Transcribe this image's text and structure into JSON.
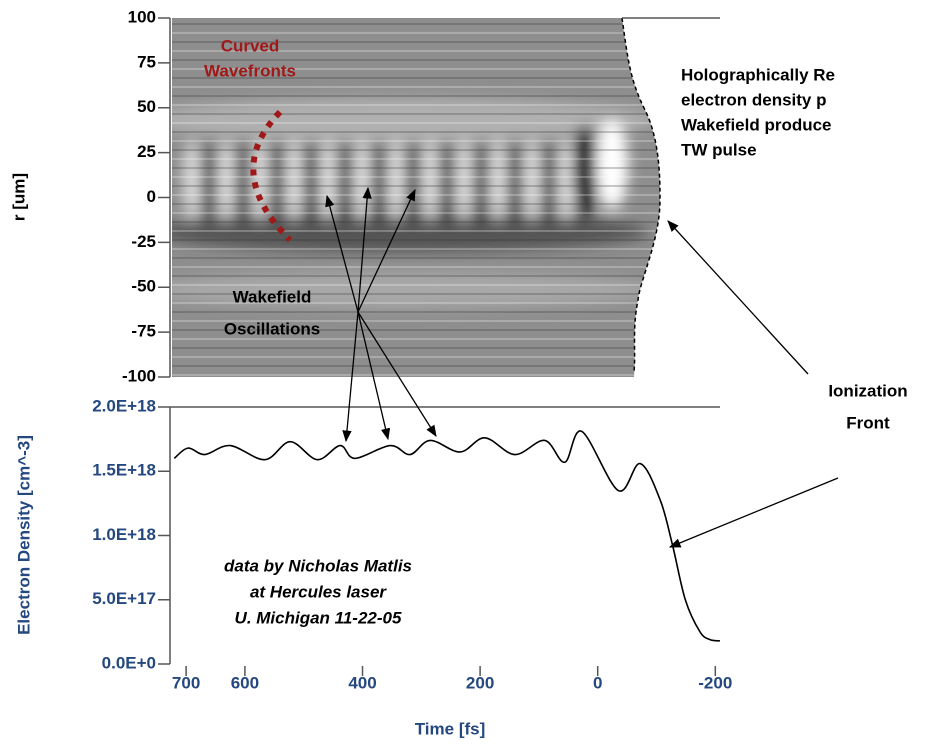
{
  "chart_data": [
    {
      "type": "image",
      "ylabel": "r [um]",
      "ylim": [
        -100,
        100
      ],
      "yticks": [
        100,
        75,
        50,
        25,
        0,
        -25,
        -50,
        -75,
        -100
      ],
      "annotations": [
        {
          "text": [
            "Curved",
            "Wavefronts"
          ],
          "color": "#a01818"
        },
        {
          "text": [
            "Holographically Re",
            "electron density p",
            "Wakefield produce",
            "TW pulse"
          ],
          "color": "#000000"
        },
        {
          "text": [
            "Wakefield",
            "Oscillations"
          ],
          "color": "#000000"
        },
        {
          "text": [
            "Ionization",
            "Front"
          ],
          "color": "#000000"
        }
      ]
    },
    {
      "type": "line",
      "xlabel": "Time [fs]",
      "ylabel": "Electron Density [cm^-3]",
      "xlim": [
        724,
        -208
      ],
      "xticks": [
        700,
        600,
        400,
        200,
        0,
        -200
      ],
      "ylim": [
        0,
        2e+18
      ],
      "yticks": [
        {
          "value": 2e+18,
          "label": "2.0E+18"
        },
        {
          "value": 1.5e+18,
          "label": "1.5E+18"
        },
        {
          "value": 1e+18,
          "label": "1.0E+18"
        },
        {
          "value": 5e+17,
          "label": "5.0E+17"
        },
        {
          "value": 0,
          "label": "0.0E+0"
        }
      ],
      "axis_color": "#24487f",
      "x": [
        720,
        697,
        668,
        625,
        566,
        523,
        477,
        438,
        413,
        353,
        319,
        285,
        234,
        192,
        141,
        90,
        56,
        27,
        -35,
        -72,
        -106,
        -127,
        -149,
        -174,
        -191,
        -208
      ],
      "series": [
        {
          "color": "#000000",
          "values": [
            1.6e+18,
            1.68e+18,
            1.63e+18,
            1.7e+18,
            1.59e+18,
            1.73e+18,
            1.59e+18,
            1.7e+18,
            1.6e+18,
            1.7e+18,
            1.63e+18,
            1.74e+18,
            1.65e+18,
            1.76e+18,
            1.63e+18,
            1.74e+18,
            1.57e+18,
            1.81e+18,
            1.35e+18,
            1.56e+18,
            1.28e+18,
            9.3e+17,
            5e+17,
            2.5e+17,
            1.9e+17,
            1.8e+17
          ]
        }
      ],
      "annotations": [
        {
          "text": [
            "data by Nicholas Matlis",
            "at Hercules laser",
            "U. Michigan 11-22-05"
          ],
          "color": "#000000",
          "italic": true
        }
      ]
    }
  ]
}
